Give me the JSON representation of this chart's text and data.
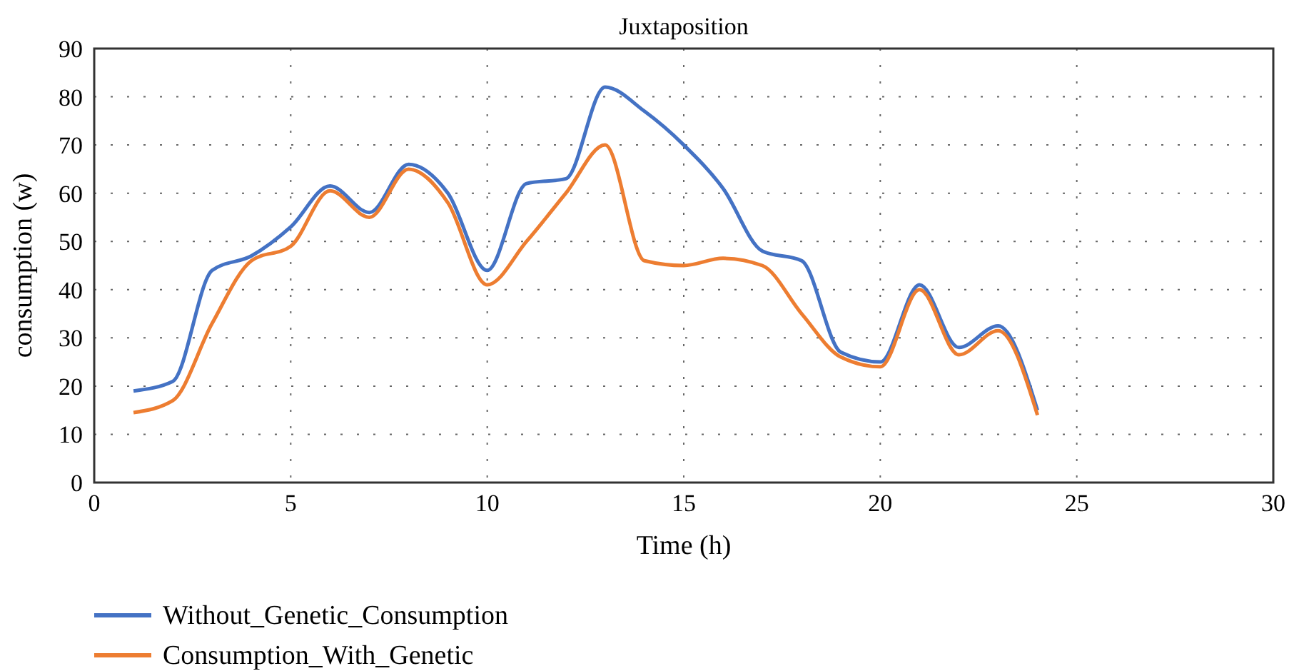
{
  "chart_data": {
    "type": "line",
    "title": "Juxtaposition",
    "xlabel": "Time (h)",
    "ylabel": "consumption (w)",
    "x": [
      1,
      2,
      3,
      4,
      5,
      6,
      7,
      8,
      9,
      10,
      11,
      12,
      13,
      14,
      15,
      16,
      17,
      18,
      19,
      20,
      21,
      22,
      23,
      24
    ],
    "series": [
      {
        "name": "Without_Genetic_Consumption",
        "color": "#4472c4",
        "values": [
          19,
          21,
          44,
          47,
          53,
          61.5,
          56,
          66,
          60,
          44,
          62,
          63,
          82,
          77,
          70,
          61,
          48,
          46,
          27,
          25,
          41,
          28,
          32.5,
          15
        ]
      },
      {
        "name": "Consumption_With_Genetic",
        "color": "#ed7d31",
        "values": [
          14.5,
          17,
          33,
          46,
          49,
          60.5,
          55,
          65,
          58,
          41,
          50,
          60,
          70,
          46,
          45,
          46.5,
          45,
          35,
          26,
          24,
          40,
          26.5,
          31.5,
          14
        ]
      }
    ],
    "xlim": [
      0,
      30
    ],
    "xticks": [
      0,
      5,
      10,
      15,
      20,
      25,
      30
    ],
    "ylim": [
      0,
      90
    ],
    "yticks": [
      0,
      10,
      20,
      30,
      40,
      50,
      60,
      70,
      80,
      90
    ],
    "grid": true,
    "legend": "bottom",
    "marker": "none",
    "line_style": "solid"
  }
}
